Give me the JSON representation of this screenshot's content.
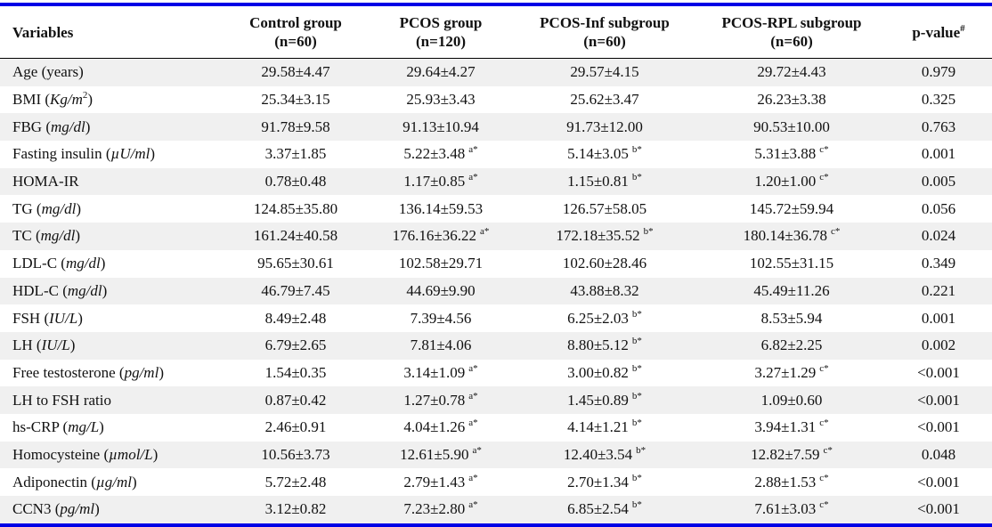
{
  "colors": {
    "rule": "#0000e6",
    "stripe": "#f0f0f0"
  },
  "table": {
    "headers": [
      {
        "line1": "Variables",
        "line2": ""
      },
      {
        "line1": "Control group",
        "line2": "(n=60)"
      },
      {
        "line1": "PCOS group",
        "line2": "(n=120)"
      },
      {
        "line1": "PCOS-Inf subgroup",
        "line2": "(n=60)"
      },
      {
        "line1": "PCOS-RPL subgroup",
        "line2": "(n=60)"
      },
      {
        "line1": "p-value",
        "sup": "#"
      }
    ],
    "rows": [
      {
        "name": "Age ",
        "unit": "",
        "unit_plain": "(years)",
        "control": "29.58±4.47",
        "pcos": "29.64±4.27",
        "pcos_sig": "",
        "inf": "29.57±4.15",
        "inf_sig": "",
        "rpl": "29.72±4.43",
        "rpl_sig": "",
        "p": "0.979"
      },
      {
        "name": "BMI ",
        "unit": "Kg/m",
        "unit_sup": "2",
        "control": "25.34±3.15",
        "pcos": "25.93±3.43",
        "pcos_sig": "",
        "inf": "25.62±3.47",
        "inf_sig": "",
        "rpl": "26.23±3.38",
        "rpl_sig": "",
        "p": "0.325"
      },
      {
        "name": "FBG ",
        "unit": "mg/dl",
        "control": "91.78±9.58",
        "pcos": "91.13±10.94",
        "pcos_sig": "",
        "inf": "91.73±12.00",
        "inf_sig": "",
        "rpl": "90.53±10.00",
        "rpl_sig": "",
        "p": "0.763"
      },
      {
        "name": "Fasting insulin ",
        "unit": "µU/ml",
        "control": "3.37±1.85",
        "pcos": "5.22±3.48",
        "pcos_sig": "a*",
        "inf": "5.14±3.05",
        "inf_sig": "b*",
        "rpl": "5.31±3.88",
        "rpl_sig": "c*",
        "p": "0.001"
      },
      {
        "name": "HOMA-IR",
        "unit": "",
        "control": "0.78±0.48",
        "pcos": "1.17±0.85",
        "pcos_sig": "a*",
        "inf": "1.15±0.81",
        "inf_sig": "b*",
        "rpl": "1.20±1.00",
        "rpl_sig": "c*",
        "p": "0.005"
      },
      {
        "name": "TG ",
        "unit": "mg/dl",
        "control": "124.85±35.80",
        "pcos": "136.14±59.53",
        "pcos_sig": "",
        "inf": "126.57±58.05",
        "inf_sig": "",
        "rpl": "145.72±59.94",
        "rpl_sig": "",
        "p": "0.056"
      },
      {
        "name": "TC ",
        "unit": "mg/dl",
        "control": "161.24±40.58",
        "pcos": "176.16±36.22",
        "pcos_sig": "a*",
        "inf": "172.18±35.52",
        "inf_sig": "b*",
        "rpl": "180.14±36.78",
        "rpl_sig": "c*",
        "p": "0.024"
      },
      {
        "name": "LDL-C ",
        "unit": "mg/dl",
        "control": "95.65±30.61",
        "pcos": "102.58±29.71",
        "pcos_sig": "",
        "inf": "102.60±28.46",
        "inf_sig": "",
        "rpl": "102.55±31.15",
        "rpl_sig": "",
        "p": "0.349"
      },
      {
        "name": "HDL-C ",
        "unit": "mg/dl",
        "control": "46.79±7.45",
        "pcos": "44.69±9.90",
        "pcos_sig": "",
        "inf": "43.88±8.32",
        "inf_sig": "",
        "rpl": "45.49±11.26",
        "rpl_sig": "",
        "p": "0.221"
      },
      {
        "name": "FSH ",
        "unit": "IU/L",
        "control": "8.49±2.48",
        "pcos": "7.39±4.56",
        "pcos_sig": "",
        "inf": "6.25±2.03",
        "inf_sig": "b*",
        "rpl": "8.53±5.94",
        "rpl_sig": "",
        "p": "0.001"
      },
      {
        "name": "LH ",
        "unit": "IU/L",
        "control": "6.79±2.65",
        "pcos": "7.81±4.06",
        "pcos_sig": "",
        "inf": "8.80±5.12",
        "inf_sig": "b*",
        "rpl": "6.82±2.25",
        "rpl_sig": "",
        "p": "0.002"
      },
      {
        "name": "Free testosterone ",
        "unit": "pg/ml",
        "control": "1.54±0.35",
        "pcos": "3.14±1.09",
        "pcos_sig": "a*",
        "inf": "3.00±0.82",
        "inf_sig": "b*",
        "rpl": "3.27±1.29",
        "rpl_sig": "c*",
        "p": "<0.001"
      },
      {
        "name": "LH to FSH ratio",
        "unit": "",
        "control": "0.87±0.42",
        "pcos": "1.27±0.78",
        "pcos_sig": "a*",
        "inf": "1.45±0.89",
        "inf_sig": "b*",
        "rpl": "1.09±0.60",
        "rpl_sig": "",
        "p": "<0.001"
      },
      {
        "name": "hs-CRP ",
        "unit": "mg/L",
        "control": "2.46±0.91",
        "pcos": "4.04±1.26",
        "pcos_sig": "a*",
        "inf": "4.14±1.21",
        "inf_sig": "b*",
        "rpl": "3.94±1.31",
        "rpl_sig": "c*",
        "p": "<0.001"
      },
      {
        "name": "Homocysteine ",
        "unit": "µmol/L",
        "control": "10.56±3.73",
        "pcos": "12.61±5.90",
        "pcos_sig": "a*",
        "inf": "12.40±3.54",
        "inf_sig": "b*",
        "rpl": "12.82±7.59",
        "rpl_sig": "c*",
        "p": "0.048"
      },
      {
        "name": "Adiponectin ",
        "unit": "µg/ml",
        "control": "5.72±2.48",
        "pcos": "2.79±1.43",
        "pcos_sig": "a*",
        "inf": "2.70±1.34",
        "inf_sig": "b*",
        "rpl": "2.88±1.53",
        "rpl_sig": "c*",
        "p": "<0.001"
      },
      {
        "name": "CCN3 ",
        "unit": "pg/ml",
        "control": "3.12±0.82",
        "pcos": "7.23±2.80",
        "pcos_sig": "a*",
        "inf": "6.85±2.54",
        "inf_sig": "b*",
        "rpl": "7.61±3.03",
        "rpl_sig": "c*",
        "p": "<0.001"
      }
    ]
  }
}
